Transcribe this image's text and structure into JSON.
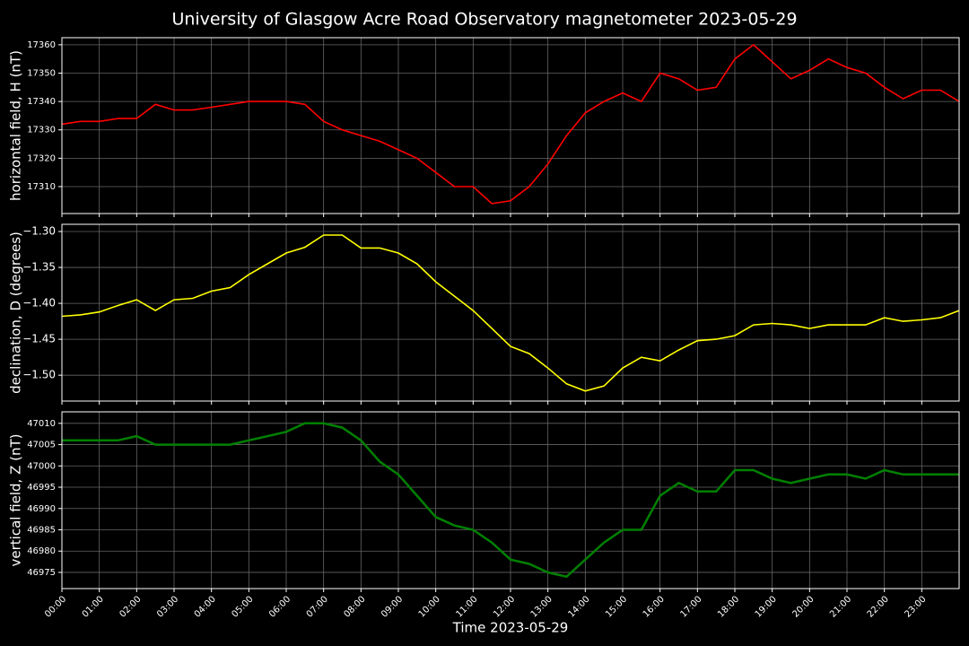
{
  "chart_data": [
    {
      "type": "line",
      "title": "University of Glasgow Acre Road Observatory magnetometer 2023-05-29",
      "ylabel": "horizontal field, H (nT)",
      "x": [
        0,
        0.5,
        1,
        1.5,
        2,
        2.5,
        3,
        3.5,
        4,
        4.5,
        5,
        5.5,
        6,
        6.5,
        7,
        7.5,
        8,
        8.5,
        9,
        9.5,
        10,
        10.5,
        11,
        11.5,
        12,
        12.5,
        13,
        13.5,
        14,
        14.5,
        15,
        15.5,
        16,
        16.5,
        17,
        17.5,
        18,
        18.5,
        19,
        19.5,
        20,
        20.5,
        21,
        21.5,
        22,
        22.5,
        23,
        23.5,
        24
      ],
      "series": [
        {
          "color": "#ff0000",
          "values": [
            17332,
            17333,
            17333,
            17334,
            17334,
            17339,
            17337,
            17337,
            17338,
            17339,
            17340,
            17340,
            17340,
            17339,
            17333,
            17330,
            17328,
            17326,
            17323,
            17320,
            17315,
            17310,
            17310,
            17304,
            17305,
            17310,
            17318,
            17328,
            17336,
            17340,
            17343,
            17340,
            17350,
            17348,
            17344,
            17345,
            17355,
            17360,
            17354,
            17348,
            17351,
            17355,
            17352,
            17350,
            17345,
            17341,
            17344,
            17344,
            17340
          ]
        }
      ],
      "xlim": [
        0,
        24
      ],
      "xticks": [
        0,
        1,
        2,
        3,
        4,
        5,
        6,
        7,
        8,
        9,
        10,
        11,
        12,
        13,
        14,
        15,
        16,
        17,
        18,
        19,
        20,
        21,
        22,
        23
      ],
      "ylim": [
        17300.5,
        17362.5
      ],
      "yticks": [
        17310,
        17320,
        17330,
        17340,
        17350,
        17360
      ],
      "grid": true
    },
    {
      "type": "line",
      "ylabel": "declination, D (degrees)",
      "x": [
        0,
        0.5,
        1,
        1.5,
        2,
        2.5,
        3,
        3.5,
        4,
        4.5,
        5,
        5.5,
        6,
        6.5,
        7,
        7.5,
        8,
        8.5,
        9,
        9.5,
        10,
        10.5,
        11,
        11.5,
        12,
        12.5,
        13,
        13.5,
        14,
        14.5,
        15,
        15.5,
        16,
        16.5,
        17,
        17.5,
        18,
        18.5,
        19,
        19.5,
        20,
        20.5,
        21,
        21.5,
        22,
        22.5,
        23,
        23.5,
        24
      ],
      "series": [
        {
          "color": "#ffff00",
          "values": [
            -1.418,
            -1.416,
            -1.412,
            -1.403,
            -1.395,
            -1.41,
            -1.395,
            -1.393,
            -1.383,
            -1.378,
            -1.36,
            -1.345,
            -1.33,
            -1.322,
            -1.305,
            -1.305,
            -1.323,
            -1.323,
            -1.33,
            -1.345,
            -1.37,
            -1.39,
            -1.41,
            -1.435,
            -1.46,
            -1.47,
            -1.49,
            -1.512,
            -1.522,
            -1.515,
            -1.49,
            -1.475,
            -1.48,
            -1.465,
            -1.452,
            -1.45,
            -1.445,
            -1.43,
            -1.428,
            -1.43,
            -1.435,
            -1.43,
            -1.43,
            -1.43,
            -1.42,
            -1.425,
            -1.423,
            -1.42,
            -1.41
          ]
        }
      ],
      "xlim": [
        0,
        24
      ],
      "xticks": [
        0,
        1,
        2,
        3,
        4,
        5,
        6,
        7,
        8,
        9,
        10,
        11,
        12,
        13,
        14,
        15,
        16,
        17,
        18,
        19,
        20,
        21,
        22,
        23
      ],
      "ylim": [
        -1.536,
        -1.29
      ],
      "yticks": [
        {
          "value": -1.3,
          "label": "−1.30"
        },
        {
          "value": -1.35,
          "label": "−1.35"
        },
        {
          "value": -1.4,
          "label": "−1.40"
        },
        {
          "value": -1.45,
          "label": "−1.45"
        },
        {
          "value": -1.5,
          "label": "−1.50"
        }
      ],
      "grid": true
    },
    {
      "type": "line",
      "ylabel": "vertical field, Z (nT)",
      "xlabel": "Time 2023-05-29",
      "x": [
        0,
        0.5,
        1,
        1.5,
        2,
        2.5,
        3,
        3.5,
        4,
        4.5,
        5,
        5.5,
        6,
        6.5,
        7,
        7.5,
        8,
        8.5,
        9,
        9.5,
        10,
        10.5,
        11,
        11.5,
        12,
        12.5,
        13,
        13.5,
        14,
        14.5,
        15,
        15.5,
        16,
        16.5,
        17,
        17.5,
        18,
        18.5,
        19,
        19.5,
        20,
        20.5,
        21,
        21.5,
        22,
        22.5,
        23,
        23.5,
        24
      ],
      "series": [
        {
          "color": "#008000",
          "values": [
            47006,
            47006,
            47006,
            47006,
            47007,
            47005,
            47005,
            47005,
            47005,
            47005,
            47006,
            47007,
            47008,
            47010,
            47010,
            47009,
            47006,
            47001,
            46998,
            46993,
            46988,
            46986,
            46985,
            46982,
            46978,
            46977,
            46975,
            46974,
            46978,
            46982,
            46985,
            46985,
            46993,
            46996,
            46994,
            46994,
            46999,
            46999,
            46997,
            46996,
            46997,
            46998,
            46998,
            46997,
            46999,
            46998,
            46998,
            46998,
            46998
          ]
        }
      ],
      "xlim": [
        0,
        24
      ],
      "xticks": [
        {
          "value": 0,
          "label": "00:00"
        },
        {
          "value": 1,
          "label": "01:00"
        },
        {
          "value": 2,
          "label": "02:00"
        },
        {
          "value": 3,
          "label": "03:00"
        },
        {
          "value": 4,
          "label": "04:00"
        },
        {
          "value": 5,
          "label": "05:00"
        },
        {
          "value": 6,
          "label": "06:00"
        },
        {
          "value": 7,
          "label": "07:00"
        },
        {
          "value": 8,
          "label": "08:00"
        },
        {
          "value": 9,
          "label": "09:00"
        },
        {
          "value": 10,
          "label": "10:00"
        },
        {
          "value": 11,
          "label": "11:00"
        },
        {
          "value": 12,
          "label": "12:00"
        },
        {
          "value": 13,
          "label": "13:00"
        },
        {
          "value": 14,
          "label": "14:00"
        },
        {
          "value": 15,
          "label": "15:00"
        },
        {
          "value": 16,
          "label": "16:00"
        },
        {
          "value": 17,
          "label": "17:00"
        },
        {
          "value": 18,
          "label": "18:00"
        },
        {
          "value": 19,
          "label": "19:00"
        },
        {
          "value": 20,
          "label": "20:00"
        },
        {
          "value": 21,
          "label": "21:00"
        },
        {
          "value": 22,
          "label": "22:00"
        },
        {
          "value": 23,
          "label": "23:00"
        }
      ],
      "ylim": [
        46971.2,
        47012.7
      ],
      "yticks": [
        46975,
        46980,
        46985,
        46990,
        46995,
        47000,
        47005,
        47010
      ],
      "grid": true
    }
  ]
}
